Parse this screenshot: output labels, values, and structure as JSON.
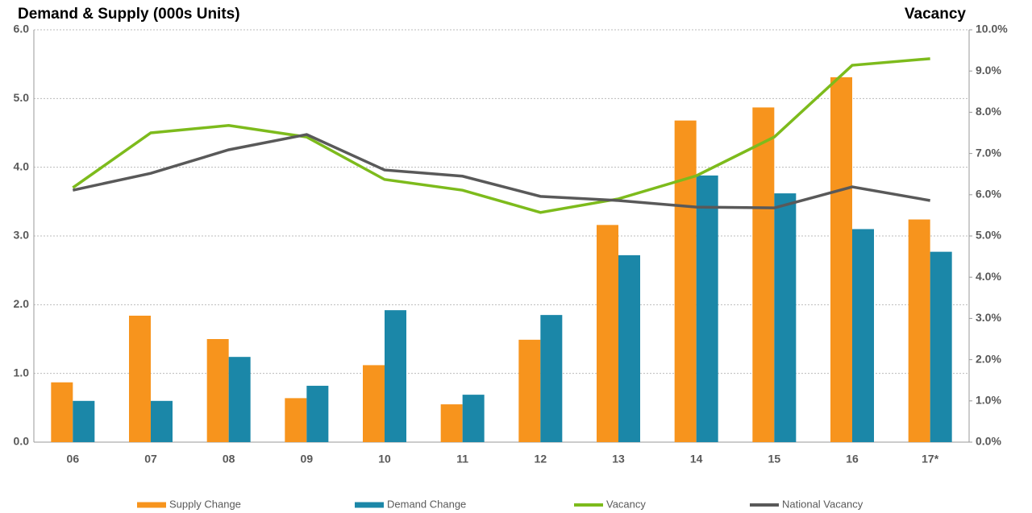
{
  "chart_data": {
    "type": "bar",
    "title": "Demand & Supply (000s Units)",
    "y2_title": "Vacancy",
    "categories": [
      "06",
      "07",
      "08",
      "09",
      "10",
      "11",
      "12",
      "13",
      "14",
      "15",
      "16",
      "17*"
    ],
    "series": [
      {
        "name": "Supply Change",
        "type": "bar",
        "color": "#f7941d",
        "values": [
          0.87,
          1.84,
          1.5,
          0.64,
          1.12,
          0.55,
          1.49,
          3.16,
          4.68,
          4.87,
          5.31,
          3.24
        ]
      },
      {
        "name": "Demand Change",
        "type": "bar",
        "color": "#1b87a8",
        "values": [
          0.6,
          0.6,
          1.24,
          0.82,
          1.92,
          0.69,
          1.85,
          2.72,
          3.88,
          3.62,
          3.1,
          2.77
        ]
      },
      {
        "name": "Vacancy",
        "type": "line",
        "axis": "y2",
        "color": "#7dbb1c",
        "values": [
          6.17,
          7.5,
          7.68,
          7.4,
          6.37,
          6.11,
          5.57,
          5.9,
          6.46,
          7.4,
          9.14,
          9.3
        ]
      },
      {
        "name": "National Vacancy",
        "type": "line",
        "axis": "y2",
        "color": "#595959",
        "values": [
          6.11,
          6.52,
          7.09,
          7.46,
          6.6,
          6.45,
          5.96,
          5.86,
          5.7,
          5.68,
          6.19,
          5.86
        ]
      }
    ],
    "ylim": [
      0,
      6
    ],
    "yticks": [
      {
        "value": 0,
        "label": "0.0"
      },
      {
        "value": 1,
        "label": "1.0"
      },
      {
        "value": 2,
        "label": "2.0"
      },
      {
        "value": 3,
        "label": "3.0"
      },
      {
        "value": 4,
        "label": "4.0"
      },
      {
        "value": 5,
        "label": "5.0"
      },
      {
        "value": 6,
        "label": "6.0"
      }
    ],
    "y2lim": [
      0,
      10
    ],
    "y2ticks": [
      {
        "value": 0,
        "label": "0.0%"
      },
      {
        "value": 1,
        "label": "1.0%"
      },
      {
        "value": 2,
        "label": "2.0%"
      },
      {
        "value": 3,
        "label": "3.0%"
      },
      {
        "value": 4,
        "label": "4.0%"
      },
      {
        "value": 5,
        "label": "5.0%"
      },
      {
        "value": 6,
        "label": "6.0%"
      },
      {
        "value": 7,
        "label": "7.0%"
      },
      {
        "value": 8,
        "label": "8.0%"
      },
      {
        "value": 9,
        "label": "9.0%"
      },
      {
        "value": 10,
        "label": "10.0%"
      }
    ],
    "grid": true,
    "legend": "bottom"
  }
}
